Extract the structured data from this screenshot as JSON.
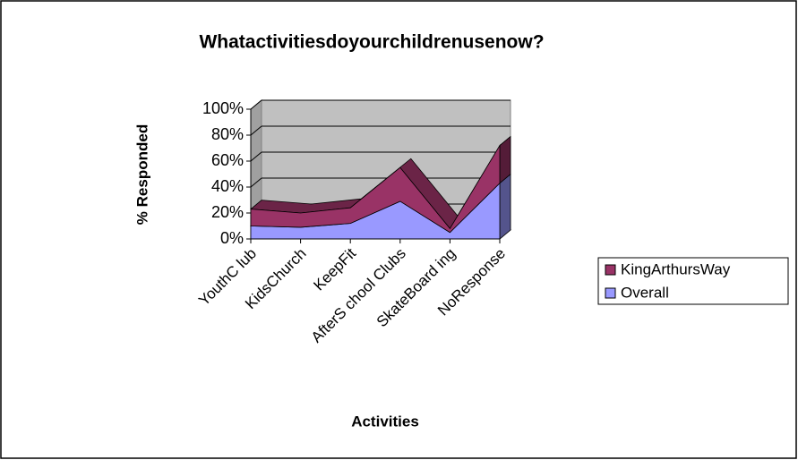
{
  "chart_data": {
    "type": "area3d_stacked",
    "title": "Whatactivitiesdoyourchildrenusenow?",
    "x_label": "Activities",
    "y_label": "% Responded",
    "categories": [
      "YouthC lub",
      "KidsChurch",
      "KeepFit",
      "AfterS chool Clubs",
      "SkateBoard ing",
      "NoResponse"
    ],
    "series": [
      {
        "name": "Overall",
        "color": "#9999ff",
        "values": [
          10,
          9,
          12,
          29,
          5,
          43
        ]
      },
      {
        "name": "KingArthursWay",
        "color": "#993366",
        "values": [
          13,
          11,
          12,
          26,
          3,
          29
        ]
      }
    ],
    "ylim": [
      0,
      100
    ],
    "yticks": [
      {
        "value": 0,
        "label": "0%"
      },
      {
        "value": 20,
        "label": "20%"
      },
      {
        "value": 40,
        "label": "40%"
      },
      {
        "value": 60,
        "label": "60%"
      },
      {
        "value": 80,
        "label": "80%"
      },
      {
        "value": 100,
        "label": "100%"
      }
    ],
    "grid": true,
    "legend": "right"
  }
}
